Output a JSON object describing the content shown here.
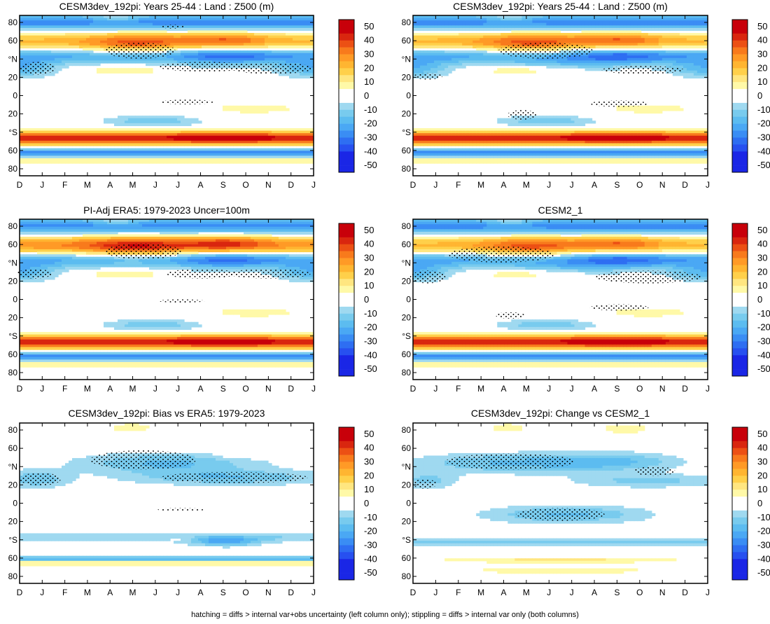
{
  "colors": {
    "levels": [
      "#1a26e6",
      "#2750f0",
      "#2e6ef2",
      "#3a8df4",
      "#4aa8f4",
      "#5cbcf0",
      "#78cbee",
      "#9fd9f0",
      "#ffffff",
      "#fff9a8",
      "#ffe680",
      "#ffd04a",
      "#ffb531",
      "#ff9a26",
      "#f87a1c",
      "#ec5014",
      "#d9260f",
      "#c8000a"
    ],
    "stipple": "#000000",
    "axis": "#000000"
  },
  "colorbar": {
    "labels": [
      "50",
      "40",
      "30",
      "20",
      "10",
      "0",
      "-10",
      "-20",
      "-30",
      "-40",
      "-50"
    ]
  },
  "footnote": "hatching = diffs > internal var+obs uncertainty (left column only); stippling = diffs > internal var only (both columns)",
  "chart_data": [
    {
      "type": "heatmap",
      "title": "CESM3dev_192pi: Years 25-44 : Land : Z500 (m)",
      "kind": "clim",
      "variant": 0,
      "x_ticks": [
        "D",
        "J",
        "F",
        "M",
        "A",
        "M",
        "J",
        "J",
        "A",
        "S",
        "O",
        "N",
        "D",
        "J"
      ],
      "y_ticks": [
        "80",
        "60",
        "°N",
        "20",
        "0",
        "20",
        "°S",
        "60",
        "80"
      ],
      "colorbar_range": [
        -50,
        50
      ]
    },
    {
      "type": "heatmap",
      "title": "CESM3dev_192pi: Years 25-44 : Land : Z500 (m)",
      "kind": "clim",
      "variant": 1,
      "x_ticks": [
        "D",
        "J",
        "F",
        "M",
        "A",
        "M",
        "J",
        "J",
        "A",
        "S",
        "O",
        "N",
        "D",
        "J"
      ],
      "y_ticks": [
        "80",
        "60",
        "°N",
        "20",
        "0",
        "20",
        "°S",
        "60",
        "80"
      ],
      "colorbar_range": [
        -50,
        50
      ]
    },
    {
      "type": "heatmap",
      "title": "PI-Adj ERA5: 1979-2023 Uncer=100m",
      "kind": "clim",
      "variant": 2,
      "x_ticks": [
        "D",
        "J",
        "F",
        "M",
        "A",
        "M",
        "J",
        "J",
        "A",
        "S",
        "O",
        "N",
        "D",
        "J"
      ],
      "y_ticks": [
        "80",
        "60",
        "°N",
        "20",
        "0",
        "20",
        "°S",
        "60",
        "80"
      ],
      "colorbar_range": [
        -50,
        50
      ]
    },
    {
      "type": "heatmap",
      "title": "CESM2_1",
      "kind": "clim",
      "variant": 3,
      "x_ticks": [
        "D",
        "J",
        "F",
        "M",
        "A",
        "M",
        "J",
        "J",
        "A",
        "S",
        "O",
        "N",
        "D",
        "J"
      ],
      "y_ticks": [
        "80",
        "60",
        "°N",
        "20",
        "0",
        "20",
        "°S",
        "60",
        "80"
      ],
      "colorbar_range": [
        -50,
        50
      ]
    },
    {
      "type": "heatmap",
      "title": "CESM3dev_192pi: Bias vs ERA5: 1979-2023",
      "kind": "diff",
      "variant": 4,
      "x_ticks": [
        "D",
        "J",
        "F",
        "M",
        "A",
        "M",
        "J",
        "J",
        "A",
        "S",
        "O",
        "N",
        "D",
        "J"
      ],
      "y_ticks": [
        "80",
        "60",
        "°N",
        "20",
        "0",
        "20",
        "°S",
        "60",
        "80"
      ],
      "colorbar_range": [
        -50,
        50
      ]
    },
    {
      "type": "heatmap",
      "title": "CESM3dev_192pi: Change vs CESM2_1",
      "kind": "diff",
      "variant": 5,
      "x_ticks": [
        "D",
        "J",
        "F",
        "M",
        "A",
        "M",
        "J",
        "J",
        "A",
        "S",
        "O",
        "N",
        "D",
        "J"
      ],
      "y_ticks": [
        "80",
        "60",
        "°N",
        "20",
        "0",
        "20",
        "°S",
        "60",
        "80"
      ],
      "colorbar_range": [
        -50,
        50
      ]
    }
  ]
}
